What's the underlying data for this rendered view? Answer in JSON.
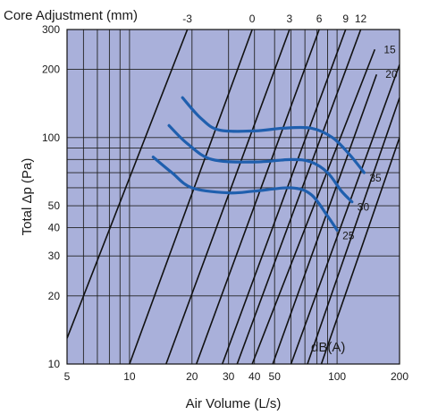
{
  "chart_data": {
    "type": "line",
    "title": "",
    "top_label": "Core Adjustment (mm)",
    "xlabel": "Air Volume (L/s)",
    "ylabel": "Total Δp (Pa)",
    "x_scale": "log",
    "y_scale": "log",
    "xlim": [
      5,
      200
    ],
    "ylim": [
      10,
      300
    ],
    "x_ticks": [
      5,
      10,
      20,
      30,
      40,
      50,
      100,
      200
    ],
    "y_ticks": [
      10,
      20,
      30,
      40,
      50,
      100,
      200,
      300
    ],
    "grid": true,
    "plot_background": "#a9b0da",
    "adjustment_color": "#111111",
    "noise_color": "#1f5fae",
    "core_adjustment_lines": [
      {
        "label": "-3",
        "points": [
          [
            5,
            13
          ],
          [
            19,
            300
          ]
        ]
      },
      {
        "label": "0",
        "points": [
          [
            10,
            10
          ],
          [
            39,
            300
          ]
        ]
      },
      {
        "label": "3",
        "points": [
          [
            15,
            10
          ],
          [
            59,
            300
          ]
        ]
      },
      {
        "label": "6",
        "points": [
          [
            21,
            10
          ],
          [
            82,
            300
          ]
        ]
      },
      {
        "label": "9",
        "points": [
          [
            28,
            10
          ],
          [
            110,
            300
          ]
        ]
      },
      {
        "label": "12",
        "points": [
          [
            33,
            10
          ],
          [
            130,
            300
          ]
        ]
      },
      {
        "label": "15",
        "points": [
          [
            39,
            10
          ],
          [
            152,
            245
          ]
        ]
      },
      {
        "label": "20",
        "points": [
          [
            49,
            10
          ],
          [
            155,
            190
          ]
        ]
      },
      {
        "label": "",
        "points": [
          [
            60,
            10
          ],
          [
            200,
            210
          ]
        ]
      },
      {
        "label": "",
        "points": [
          [
            72,
            10
          ],
          [
            200,
            150
          ]
        ]
      },
      {
        "label": "",
        "points": [
          [
            84,
            10
          ],
          [
            200,
            100
          ]
        ]
      }
    ],
    "noise_curves": [
      {
        "name": "35",
        "points": [
          [
            18,
            150
          ],
          [
            22,
            122
          ],
          [
            27,
            108
          ],
          [
            40,
            107
          ],
          [
            55,
            110
          ],
          [
            75,
            110
          ],
          [
            95,
            100
          ],
          [
            115,
            84
          ],
          [
            135,
            70
          ]
        ]
      },
      {
        "name": "30",
        "points": [
          [
            15.5,
            113
          ],
          [
            19,
            94
          ],
          [
            25,
            80
          ],
          [
            40,
            78
          ],
          [
            60,
            80
          ],
          [
            75,
            78
          ],
          [
            90,
            70
          ],
          [
            105,
            58
          ],
          [
            118,
            52
          ]
        ]
      },
      {
        "name": "25",
        "points": [
          [
            13,
            82
          ],
          [
            16,
            70
          ],
          [
            20,
            60
          ],
          [
            30,
            57
          ],
          [
            40,
            58
          ],
          [
            60,
            60
          ],
          [
            75,
            56
          ],
          [
            90,
            45
          ],
          [
            100,
            39
          ]
        ]
      }
    ],
    "annotations": [
      "dB(A)"
    ]
  }
}
